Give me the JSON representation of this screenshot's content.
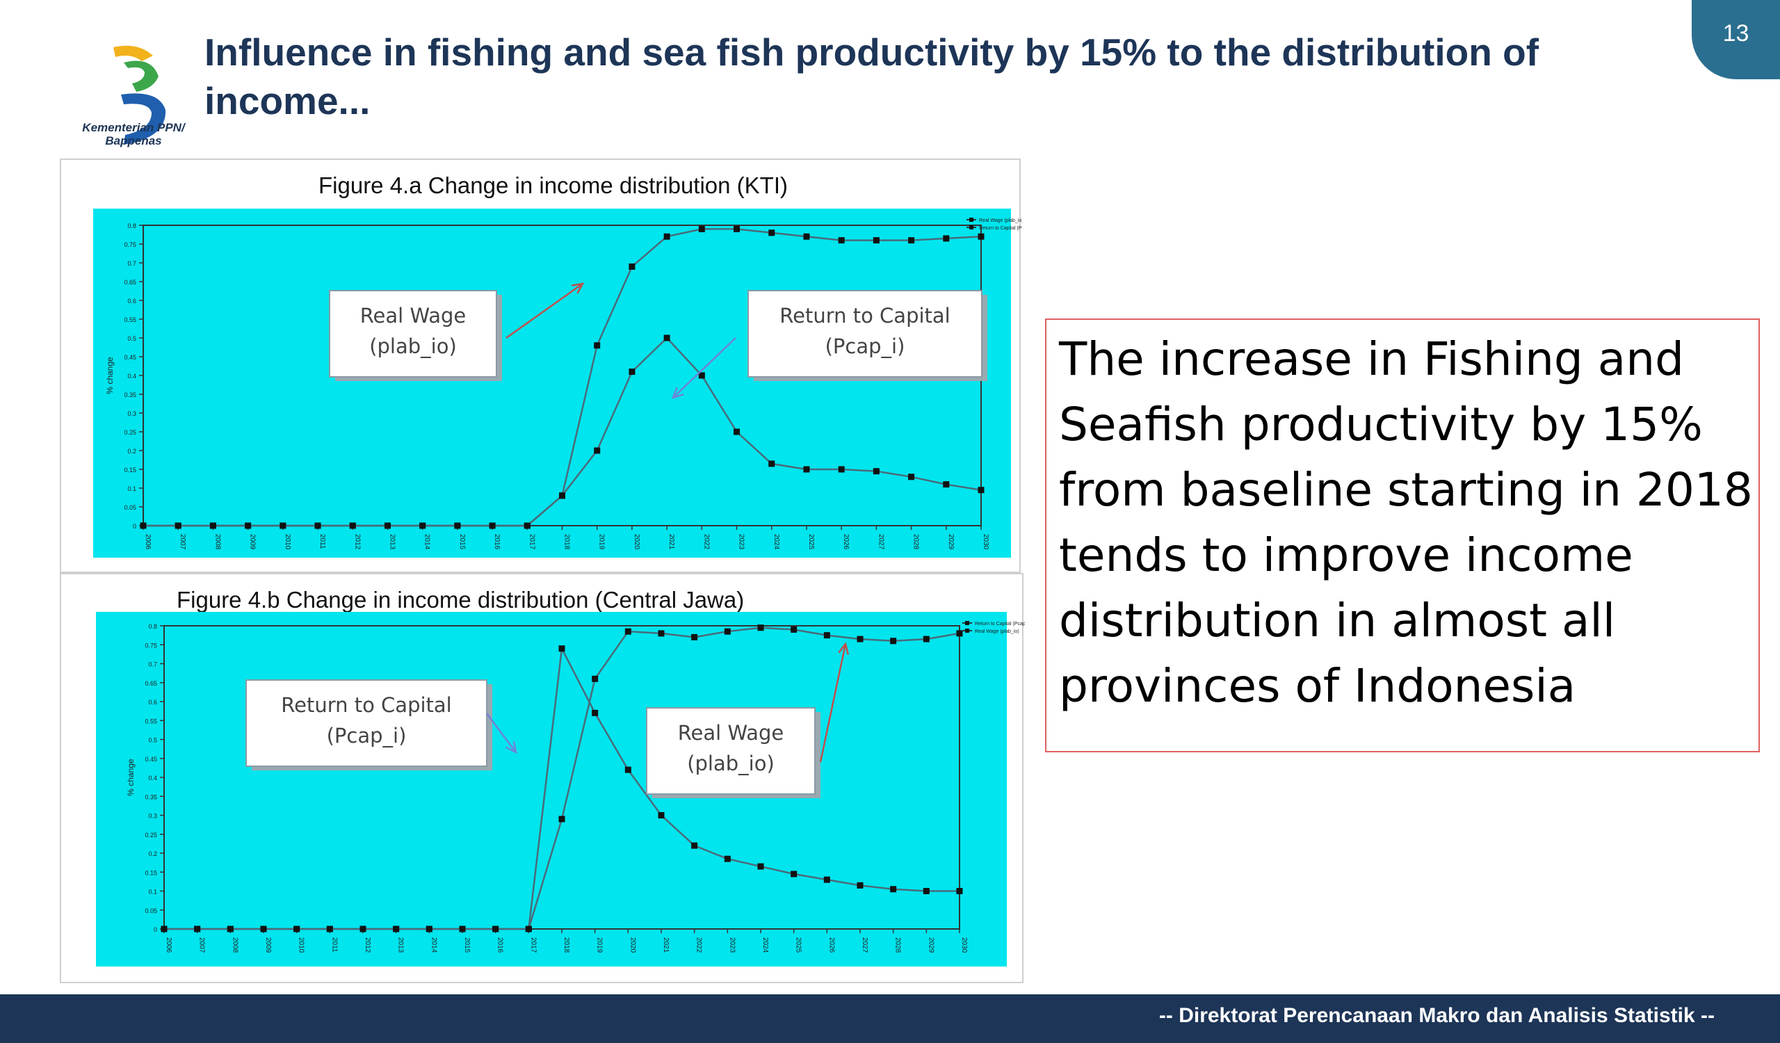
{
  "slide": {
    "title": "Influence in fishing and sea fish productivity by 15% to the distribution of income...",
    "page_number": "13",
    "logo_text": "Kementerian PPN/ Bappenas",
    "footer": "-- Direktorat Perencanaan Makro dan Analisis Statistik --",
    "body_text": "The increase in Fishing and Seafish productivity by 15% from baseline starting in 2018 tends to improve income distribution in almost all provinces of Indonesia"
  },
  "colors": {
    "title": "#1d3557",
    "plot_background": "#00e5ee",
    "footer": "#1d3557",
    "badge": "#2a6f8f",
    "text_box_border": "#e06060"
  },
  "chart_data": [
    {
      "type": "line",
      "title": "Figure 4.a Change in income distribution (KTI)",
      "ylabel": "% change",
      "ylim": [
        0,
        0.8
      ],
      "grid": false,
      "legend": "top-right",
      "x": [
        2006,
        2007,
        2008,
        2009,
        2010,
        2011,
        2012,
        2013,
        2014,
        2015,
        2016,
        2017,
        2018,
        2019,
        2020,
        2021,
        2022,
        2023,
        2024,
        2025,
        2026,
        2027,
        2028,
        2029,
        2030
      ],
      "series": [
        {
          "name": "Real Wage (plab_io)",
          "values": [
            0,
            0,
            0,
            0,
            0,
            0,
            0,
            0,
            0,
            0,
            0,
            0,
            0.08,
            0.48,
            0.69,
            0.77,
            0.79,
            0.79,
            0.78,
            0.77,
            0.76,
            0.76,
            0.76,
            0.765,
            0.77
          ]
        },
        {
          "name": "Return to Capital (Pcap_i)",
          "values": [
            0,
            0,
            0,
            0,
            0,
            0,
            0,
            0,
            0,
            0,
            0,
            0,
            0.08,
            0.2,
            0.41,
            0.5,
            0.4,
            0.25,
            0.165,
            0.15,
            0.15,
            0.145,
            0.13,
            0.11,
            0.095
          ]
        }
      ]
    },
    {
      "type": "line",
      "title": "Figure 4.b Change in income distribution (Central Jawa)",
      "ylabel": "% change",
      "ylim": [
        0,
        0.8
      ],
      "grid": false,
      "legend": "top-right",
      "x": [
        2006,
        2007,
        2008,
        2009,
        2010,
        2011,
        2012,
        2013,
        2014,
        2015,
        2016,
        2017,
        2018,
        2019,
        2020,
        2021,
        2022,
        2023,
        2024,
        2025,
        2026,
        2027,
        2028,
        2029,
        2030
      ],
      "series": [
        {
          "name": "Return to Capital (Pcap_i)",
          "values": [
            0,
            0,
            0,
            0,
            0,
            0,
            0,
            0,
            0,
            0,
            0,
            0,
            0.74,
            0.57,
            0.42,
            0.3,
            0.22,
            0.185,
            0.165,
            0.145,
            0.13,
            0.115,
            0.105,
            0.1,
            0.1
          ]
        },
        {
          "name": "Real Wage (plab_io)",
          "values": [
            0,
            0,
            0,
            0,
            0,
            0,
            0,
            0,
            0,
            0,
            0,
            0,
            0.29,
            0.66,
            0.785,
            0.78,
            0.77,
            0.785,
            0.795,
            0.79,
            0.775,
            0.765,
            0.76,
            0.765,
            0.78
          ]
        }
      ]
    }
  ]
}
